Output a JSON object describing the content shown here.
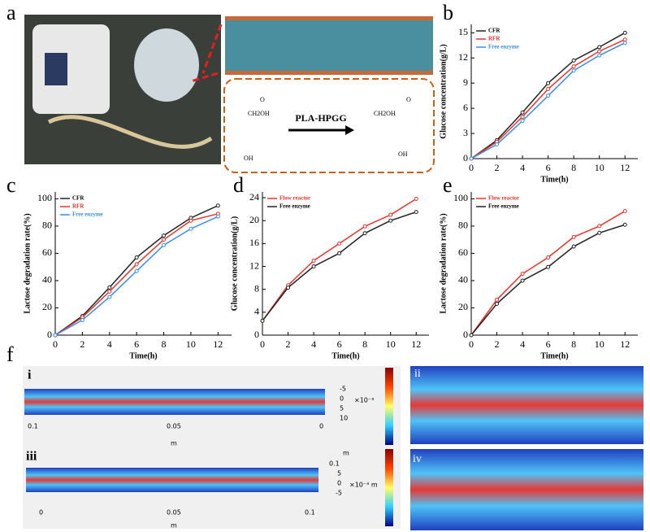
{
  "chart_data": [
    {
      "type": "line",
      "label": "b",
      "xlabel": "Time(h)",
      "ylabel": "Glucose concentration(g/L)",
      "x": [
        0,
        2,
        4,
        6,
        8,
        10,
        12
      ],
      "xlim": [
        0,
        13
      ],
      "xticks": [
        0,
        2,
        4,
        6,
        8,
        10,
        12
      ],
      "ylim": [
        0,
        16
      ],
      "yticks": [
        0,
        3,
        6,
        9,
        12,
        15
      ],
      "legend": "upper left",
      "series": [
        {
          "name": "CFR",
          "color": "#222222",
          "values": [
            0,
            2.2,
            5.5,
            9,
            11.7,
            13.3,
            15
          ]
        },
        {
          "name": "RFR",
          "color": "#e8332a",
          "values": [
            0,
            2,
            5,
            8.3,
            11,
            12.8,
            14.2
          ]
        },
        {
          "name": "Free enzyme",
          "color": "#3a8ee6",
          "values": [
            0,
            1.7,
            4.5,
            7.5,
            10.5,
            12.3,
            13.8
          ]
        }
      ]
    },
    {
      "type": "line",
      "label": "c",
      "xlabel": "Time(h)",
      "ylabel": "Lactose degradation rate(%)",
      "x": [
        0,
        2,
        4,
        6,
        8,
        10,
        12
      ],
      "xlim": [
        0,
        13
      ],
      "xticks": [
        0,
        2,
        4,
        6,
        8,
        10,
        12
      ],
      "ylim": [
        0,
        105
      ],
      "yticks": [
        0,
        20,
        40,
        60,
        80,
        100
      ],
      "legend": "upper left",
      "series": [
        {
          "name": "CFR",
          "color": "#222222",
          "values": [
            0,
            14,
            35,
            57,
            73,
            86,
            95
          ]
        },
        {
          "name": "RFR",
          "color": "#e8332a",
          "values": [
            0,
            13,
            32,
            52,
            70,
            84,
            89
          ]
        },
        {
          "name": "Free enzyme",
          "color": "#3a8ee6",
          "values": [
            0,
            11,
            28,
            47,
            66,
            78,
            87
          ]
        }
      ]
    },
    {
      "type": "line",
      "label": "d",
      "xlabel": "Time(h)",
      "ylabel": "Glucose concentration(g/L)",
      "x": [
        0,
        2,
        4,
        6,
        8,
        10,
        12
      ],
      "xlim": [
        0,
        13
      ],
      "xticks": [
        0,
        2,
        4,
        6,
        8,
        10,
        12
      ],
      "ylim": [
        0,
        25
      ],
      "yticks": [
        0,
        4,
        8,
        12,
        16,
        20,
        24
      ],
      "legend": "upper left",
      "series": [
        {
          "name": "Flow reactor",
          "color": "#e8332a",
          "values": [
            2.5,
            8.7,
            13,
            16,
            19,
            21,
            23.8
          ]
        },
        {
          "name": "Free enzyme",
          "color": "#222222",
          "values": [
            2.5,
            8.3,
            12,
            14.3,
            17.8,
            20,
            21.5
          ]
        }
      ]
    },
    {
      "type": "line",
      "label": "e",
      "xlabel": "Time(h)",
      "ylabel": "Lactose degradation rate(%)",
      "x": [
        0,
        2,
        4,
        6,
        8,
        10,
        12
      ],
      "xlim": [
        0,
        13
      ],
      "xticks": [
        0,
        2,
        4,
        6,
        8,
        10,
        12
      ],
      "ylim": [
        0,
        105
      ],
      "yticks": [
        0,
        20,
        40,
        60,
        80,
        100
      ],
      "legend": "upper left",
      "series": [
        {
          "name": "Flow reactor",
          "color": "#e8332a",
          "values": [
            0,
            26,
            45,
            57,
            72,
            80,
            91
          ]
        },
        {
          "name": "Free enzyme",
          "color": "#222222",
          "values": [
            0,
            23,
            40,
            50,
            65,
            75,
            81
          ]
        }
      ]
    }
  ],
  "panel_a": {
    "label": "a",
    "reaction": "PLA-HPGG",
    "group": "CH2OH",
    "oxygen": "O",
    "hydroxyl": "OH"
  },
  "panel_f": {
    "label": "f",
    "sub": [
      "i",
      "ii",
      "iii",
      "iv"
    ],
    "i_x": [
      "0.1",
      "0.05",
      "0"
    ],
    "i_y": [
      "-5",
      "0",
      "5",
      "10"
    ],
    "unit": "m",
    "scale": "×10⁻³",
    "iii_x": [
      "0",
      "0.05",
      "0.1"
    ],
    "iii_y": [
      "0.1",
      "5",
      "0",
      "-5"
    ],
    "iii_scale": "×10⁻³ m"
  }
}
